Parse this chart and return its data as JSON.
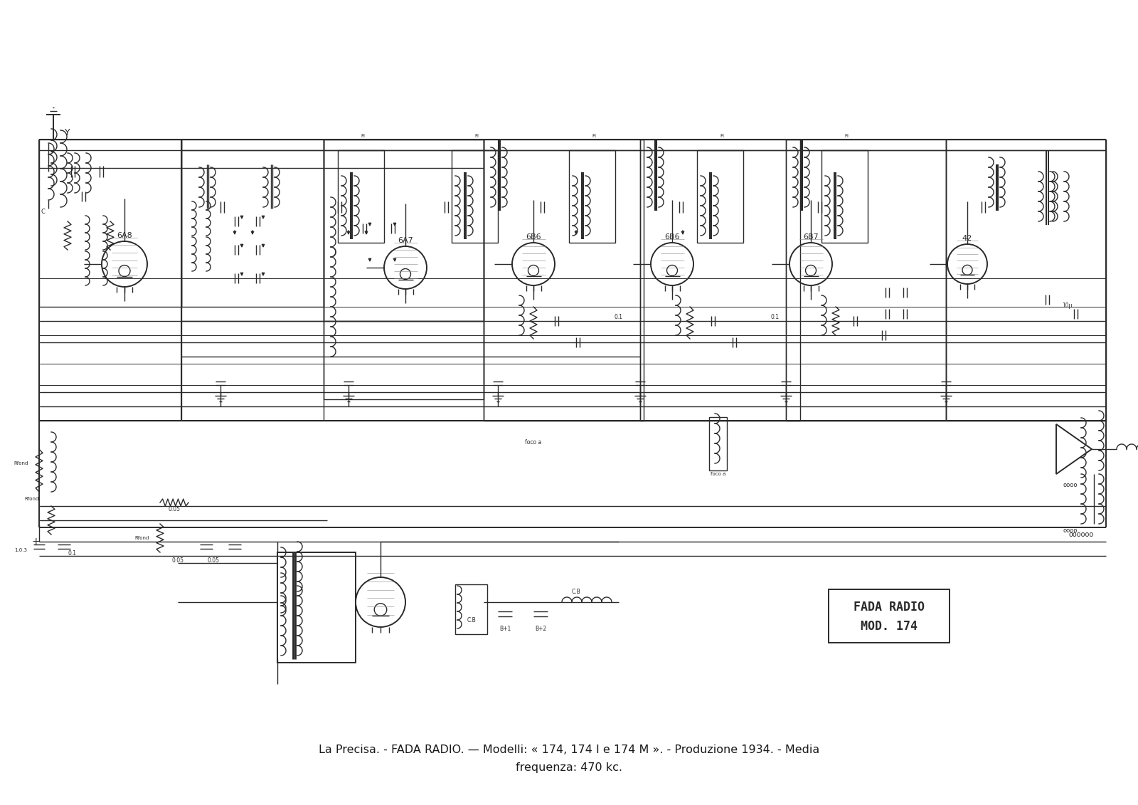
{
  "title_line1": "La Precisa. - FADA RADIO. — Modelli: « 174, 174 I e 174 M ». - Produzione 1934. - Media",
  "title_line2": "frequenza: 470 kc.",
  "brand_box_text": [
    "FADA RADIO",
    "MOD. 174"
  ],
  "background_color": "#ffffff",
  "line_color": "#2a2a2a",
  "text_color": "#1a1a1a",
  "fig_width": 16.0,
  "fig_height": 11.31,
  "title_fontsize": 11.5,
  "brand_fontsize": 11
}
